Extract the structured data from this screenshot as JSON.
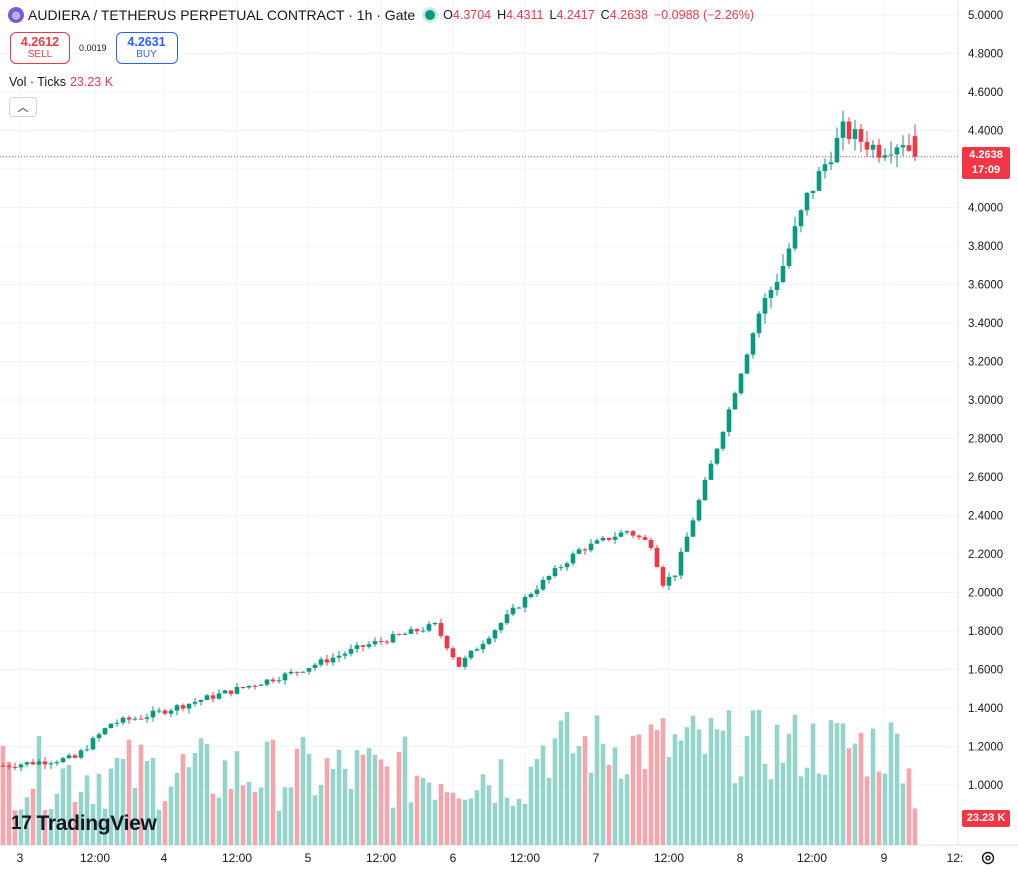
{
  "header": {
    "symbol_icon": "audiera-coin-icon",
    "title": "AUDIERA / TETHERUS PERPETUAL CONTRACT · 1h · Gate",
    "o_label": "O",
    "o": "4.3704",
    "h_label": "H",
    "h": "4.4311",
    "l_label": "L",
    "l": "4.2417",
    "c_label": "C",
    "c": "4.2638",
    "change": "−0.0988 (−2.26%)"
  },
  "trade": {
    "sell_price": "4.2612",
    "sell_label": "SELL",
    "spread": "0.0019",
    "buy_price": "4.2631",
    "buy_label": "BUY"
  },
  "volume_legend": {
    "label": "Vol · Ticks",
    "value": "23.23 K"
  },
  "price_label": {
    "price": "4.2638",
    "countdown": "17:09"
  },
  "volume_label": "23.23 K",
  "logo": {
    "mark": "17",
    "text": "TradingView"
  },
  "colors": {
    "up": "#089981",
    "down": "#F23645",
    "vol_up": "#95d4cb",
    "vol_down": "#f5a5ab",
    "grid": "#f0f3fa",
    "axis_text": "#131722"
  },
  "chart_data": {
    "type": "candlestick",
    "interval": "1h",
    "y_axis": {
      "min": 0.8,
      "max": 5.0,
      "step": 0.2,
      "ticks": [
        "5.0000",
        "4.8000",
        "4.6000",
        "4.4000",
        "4.2000",
        "4.0000",
        "3.8000",
        "3.6000",
        "3.4000",
        "3.2000",
        "3.0000",
        "2.8000",
        "2.6000",
        "2.4000",
        "2.2000",
        "2.0000",
        "1.8000",
        "1.6000",
        "1.4000",
        "1.2000",
        "1.0000"
      ]
    },
    "x_axis": {
      "labels": [
        "3",
        "12:00",
        "4",
        "12:00",
        "5",
        "12:00",
        "6",
        "12:00",
        "7",
        "12:00",
        "8",
        "12:00",
        "9",
        "12:"
      ]
    },
    "last_price": 4.2638,
    "keypoints": [
      {
        "i": 0,
        "p": 1.1
      },
      {
        "i": 12,
        "p": 1.14
      },
      {
        "i": 18,
        "p": 1.32
      },
      {
        "i": 24,
        "p": 1.36
      },
      {
        "i": 36,
        "p": 1.47
      },
      {
        "i": 48,
        "p": 1.58
      },
      {
        "i": 60,
        "p": 1.72
      },
      {
        "i": 72,
        "p": 1.83
      },
      {
        "i": 76,
        "p": 1.62
      },
      {
        "i": 88,
        "p": 2.0
      },
      {
        "i": 96,
        "p": 2.22
      },
      {
        "i": 104,
        "p": 2.32
      },
      {
        "i": 108,
        "p": 2.25
      },
      {
        "i": 110,
        "p": 2.05
      },
      {
        "i": 112,
        "p": 2.1
      },
      {
        "i": 120,
        "p": 2.85
      },
      {
        "i": 126,
        "p": 3.45
      },
      {
        "i": 130,
        "p": 3.7
      },
      {
        "i": 134,
        "p": 4.05
      },
      {
        "i": 140,
        "p": 4.4
      },
      {
        "i": 146,
        "p": 4.3
      },
      {
        "i": 150,
        "p": 4.35
      },
      {
        "i": 152,
        "p": 4.26
      }
    ],
    "volume": {
      "max_k": 140,
      "last_k": 23.23
    }
  }
}
